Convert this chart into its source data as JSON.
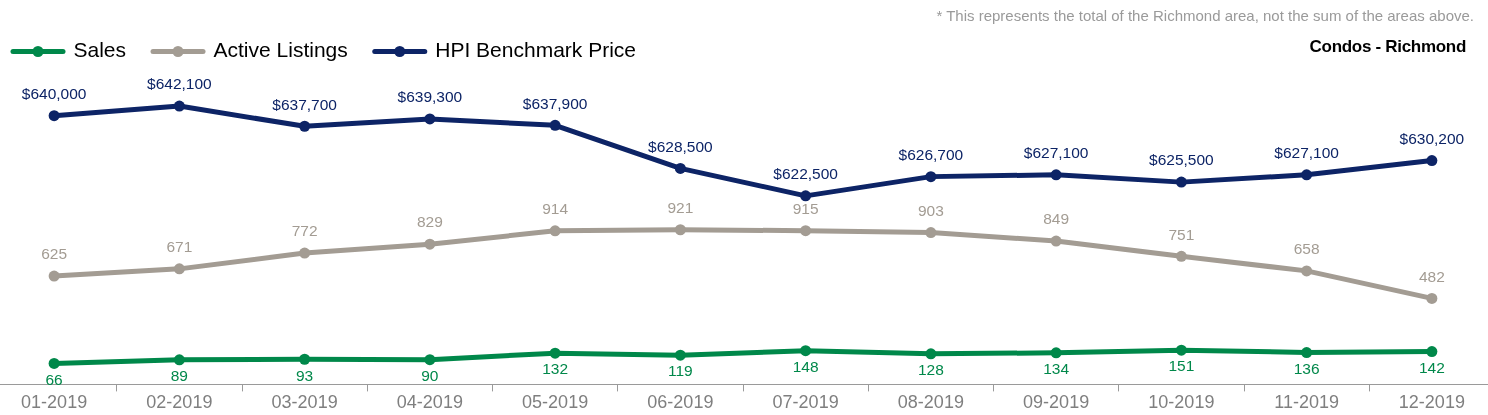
{
  "chart_data": [
    {
      "type": "line",
      "title": "Condos - Richmond",
      "annotations": [
        "* This represents the total of the Richmond area, not the sum of the areas above."
      ],
      "categories": [
        null,
        null,
        null,
        null,
        null,
        null,
        null,
        null,
        null,
        null,
        null,
        null
      ],
      "series": [
        {
          "name": "HPI Benchmark Price",
          "color": "#0d2466",
          "values": [
            640000,
            642100,
            637700,
            639300,
            637900,
            628500,
            622500,
            626700,
            627100,
            625500,
            627100,
            630200
          ],
          "value_labels": [
            "$640,000",
            "$642,100",
            "$637,700",
            "$639,300",
            "$637,900",
            "$628,500",
            "$622,500",
            "$626,700",
            "$627,100",
            "$625,500",
            "$627,100",
            "$630,200"
          ]
        }
      ],
      "tick_labels": false,
      "legend": "top left",
      "marker": "circle",
      "line_style": "solid",
      "grid": false
    },
    {
      "type": "line",
      "categories": [
        "01-2019",
        "02-2019",
        "03-2019",
        "04-2019",
        "05-2019",
        "06-2019",
        "07-2019",
        "08-2019",
        "09-2019",
        "10-2019",
        "11-2019",
        "12-2019"
      ],
      "series": [
        {
          "name": "Sales",
          "color": "#00884a",
          "values": [
            66,
            89,
            93,
            90,
            132,
            119,
            148,
            128,
            134,
            151,
            136,
            142
          ],
          "value_labels": [
            "66",
            "89",
            "93",
            "90",
            "132",
            "119",
            "148",
            "128",
            "134",
            "151",
            "136",
            "142"
          ]
        },
        {
          "name": "Active Listings",
          "color": "#a39c93",
          "values": [
            625,
            671,
            772,
            829,
            914,
            921,
            915,
            903,
            849,
            751,
            658,
            482
          ],
          "value_labels": [
            "625",
            "671",
            "772",
            "829",
            "914",
            "921",
            "915",
            "903",
            "849",
            "751",
            "658",
            "482"
          ]
        }
      ],
      "tick_labels": "x",
      "legend": "top left",
      "marker": "circle",
      "line_style": "solid",
      "grid": false
    }
  ]
}
